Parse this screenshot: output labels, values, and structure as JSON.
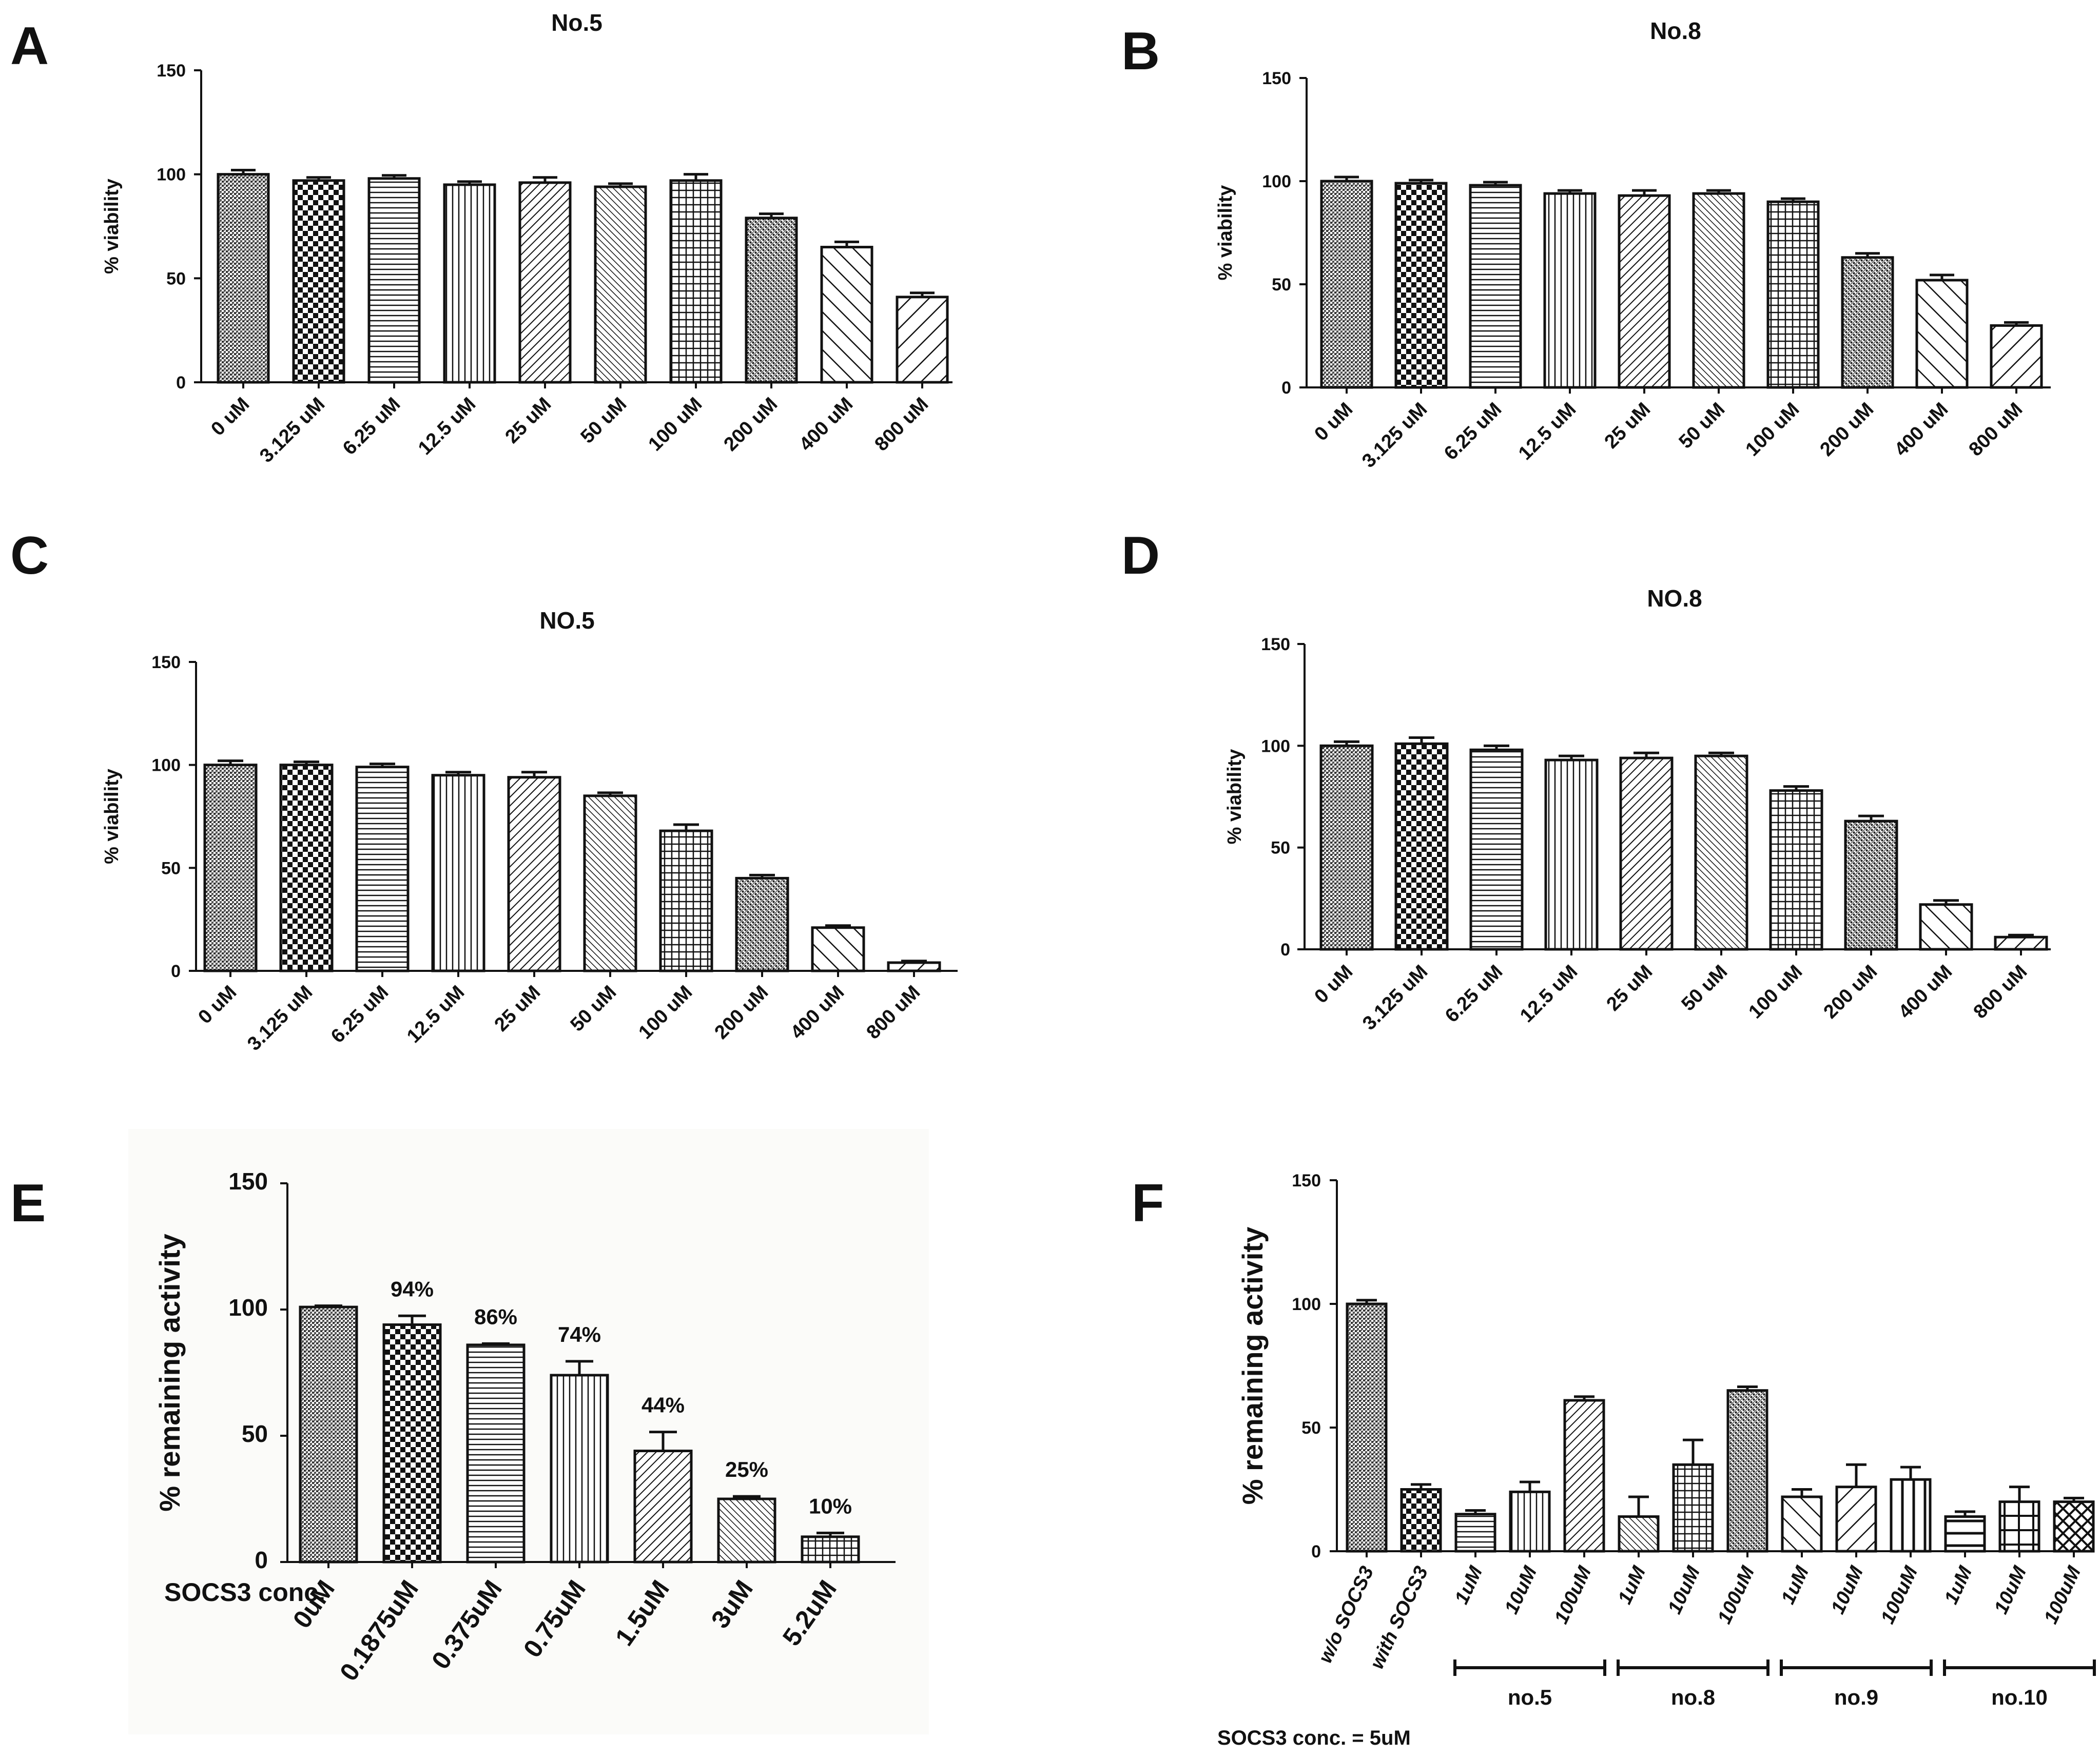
{
  "colors": {
    "ink": "#111111",
    "bar_fill": "#ffffff",
    "panel_e_bg": "#fbfbf9"
  },
  "chart_data": [
    {
      "panel": "A",
      "type": "bar",
      "title": "No.5",
      "ylabel": "% viability",
      "ylim": [
        0,
        150
      ],
      "yticks": [
        0,
        50,
        100,
        150
      ],
      "categories": [
        "0 uM",
        "3.125 uM",
        "6.25 uM",
        "12.5 uM",
        "25 uM",
        "50 uM",
        "100 uM",
        "200 uM",
        "400 uM",
        "800 uM"
      ],
      "values": [
        100,
        97,
        98,
        95,
        96,
        94,
        97,
        79,
        65,
        41
      ],
      "errors": [
        2,
        1.5,
        1.5,
        1.5,
        2.5,
        1.5,
        3,
        2,
        2.5,
        2
      ],
      "patterns": [
        "dense",
        "checker",
        "hlines",
        "vlines",
        "diag-right",
        "diag-fine",
        "grid",
        "dots",
        "diag-wide",
        "diag-left-wide"
      ]
    },
    {
      "panel": "B",
      "type": "bar",
      "title": "No.8",
      "ylabel": "% viability",
      "ylim": [
        0,
        150
      ],
      "yticks": [
        0,
        50,
        100,
        150
      ],
      "categories": [
        "0 uM",
        "3.125 uM",
        "6.25 uM",
        "12.5 uM",
        "25 uM",
        "50 uM",
        "100 uM",
        "200 uM",
        "400 uM",
        "800 uM"
      ],
      "values": [
        100,
        99,
        98,
        94,
        93,
        94,
        90,
        63,
        52,
        30
      ],
      "errors": [
        2,
        1.5,
        1.5,
        1.5,
        2.5,
        1.5,
        1.5,
        2,
        2.5,
        1.5
      ],
      "patterns": [
        "dense",
        "checker",
        "hlines",
        "vlines",
        "diag-right",
        "diag-fine",
        "grid",
        "dots",
        "diag-wide",
        "diag-left-wide"
      ]
    },
    {
      "panel": "C",
      "type": "bar",
      "title": "NO.5",
      "ylabel": "% viability",
      "ylim": [
        0,
        150
      ],
      "yticks": [
        0,
        50,
        100,
        150
      ],
      "categories": [
        "0 uM",
        "3.125 uM",
        "6.25 uM",
        "12.5 uM",
        "25 uM",
        "50 uM",
        "100 uM",
        "200 uM",
        "400 uM",
        "800 uM"
      ],
      "values": [
        100,
        100,
        99,
        95,
        94,
        85,
        68,
        45,
        21,
        4
      ],
      "errors": [
        2,
        1.5,
        1.5,
        1.5,
        2.5,
        1.5,
        3,
        1.5,
        1,
        0.8
      ],
      "patterns": [
        "dense",
        "checker",
        "hlines",
        "vlines",
        "diag-right",
        "diag-fine",
        "grid",
        "dots",
        "diag-wide",
        "diag-left-wide"
      ]
    },
    {
      "panel": "D",
      "type": "bar",
      "title": "NO.8",
      "ylabel": "% viability",
      "ylim": [
        0,
        150
      ],
      "yticks": [
        0,
        50,
        100,
        150
      ],
      "categories": [
        "0 uM",
        "3.125 uM",
        "6.25 uM",
        "12.5 uM",
        "25 uM",
        "50 uM",
        "100 uM",
        "200 uM",
        "400 uM",
        "800 uM"
      ],
      "values": [
        100,
        101,
        98,
        93,
        94,
        95,
        78,
        63,
        22,
        6
      ],
      "errors": [
        2,
        3,
        2,
        2,
        2.5,
        1.5,
        2,
        2.5,
        2,
        1
      ],
      "patterns": [
        "dense",
        "checker",
        "hlines",
        "vlines",
        "diag-right",
        "diag-fine",
        "grid",
        "dots",
        "diag-wide",
        "diag-left-wide"
      ]
    },
    {
      "panel": "E",
      "type": "bar",
      "title": "",
      "ylabel": "% remaining activity",
      "xlabel": "SOCS3 conc.",
      "ylim": [
        0,
        150
      ],
      "yticks": [
        0,
        50,
        100,
        150
      ],
      "categories": [
        "0uM",
        "0.1875uM",
        "0.375uM",
        "0.75uM",
        "1.5uM",
        "3uM",
        "5.2uM"
      ],
      "values": [
        101,
        94,
        86,
        74,
        44,
        25,
        10
      ],
      "errors": [
        0.5,
        3.5,
        0.5,
        5.5,
        7.5,
        1,
        1.5
      ],
      "data_labels": [
        "",
        "94%",
        "86%",
        "74%",
        "44%",
        "25%",
        "10%"
      ],
      "patterns": [
        "dense",
        "checker",
        "hlines",
        "vlines",
        "diag-right",
        "diag-fine",
        "grid"
      ]
    },
    {
      "panel": "F",
      "type": "bar",
      "title": "",
      "ylabel": "% remaining activity",
      "ylim": [
        0,
        150
      ],
      "yticks": [
        0,
        50,
        100,
        150
      ],
      "categories": [
        "w/o SOCS3",
        "with SOCS3",
        "1uM",
        "10uM",
        "100uM",
        "1uM",
        "10uM",
        "100uM",
        "1uM",
        "10uM",
        "100uM",
        "1uM",
        "10uM",
        "100uM"
      ],
      "values": [
        100,
        25,
        15,
        24,
        61,
        14,
        35,
        65,
        22,
        26,
        29,
        14,
        20,
        20
      ],
      "errors": [
        1.5,
        2,
        1.5,
        4,
        1.5,
        8,
        10,
        1.5,
        3,
        9,
        5,
        2,
        6,
        1.5
      ],
      "patterns": [
        "dense",
        "checker",
        "hlines",
        "vlines",
        "diag-right",
        "diag-fine",
        "grid",
        "dots",
        "diag-wide",
        "diag-left-wide",
        "vlines-wide",
        "hlines-wide",
        "grid-wide",
        "crosshatch"
      ],
      "groups": [
        {
          "label": "no.5",
          "from": 2,
          "to": 4
        },
        {
          "label": "no.8",
          "from": 5,
          "to": 7
        },
        {
          "label": "no.9",
          "from": 8,
          "to": 10
        },
        {
          "label": "no.10",
          "from": 11,
          "to": 13
        }
      ],
      "note": "SOCS3 conc. = 5uM"
    }
  ]
}
